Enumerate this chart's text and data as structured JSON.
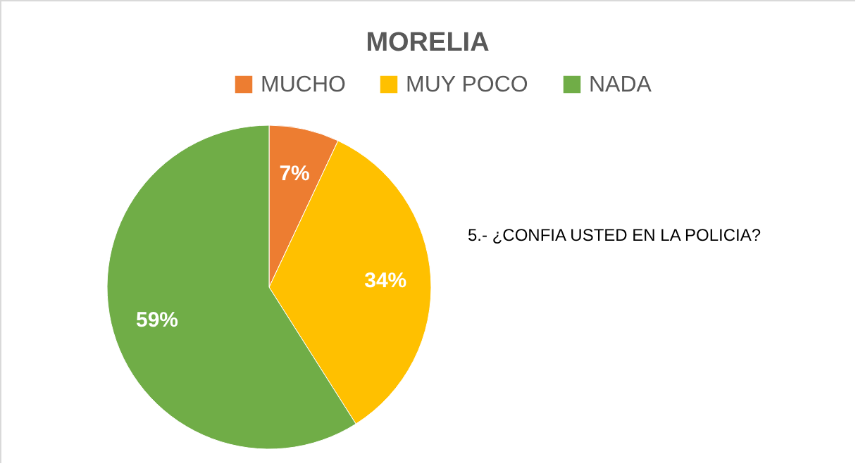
{
  "chart_data": {
    "type": "pie",
    "title": "MORELIA",
    "categories": [
      "MUCHO",
      "MUY POCO",
      "NADA"
    ],
    "values": [
      7,
      34,
      59
    ],
    "colors": [
      "#ed7d31",
      "#ffc000",
      "#70ad47"
    ],
    "value_labels": [
      "7%",
      "34%",
      "59%"
    ],
    "legend": "top",
    "annotations": [
      "5.- ¿CONFIA USTED EN LA POLICIA?"
    ]
  }
}
